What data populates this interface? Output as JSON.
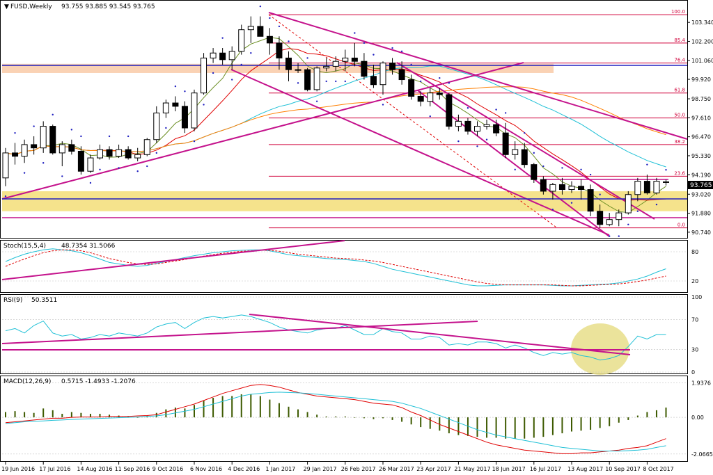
{
  "colors": {
    "bull": "#ffffff",
    "bear": "#000000",
    "magenta": "#c4128c",
    "red": "#e00000",
    "cyan": "#1fc0d6",
    "olive": "#6b8e23",
    "orange": "#ff7f00",
    "blue": "#2020c0",
    "fib": "#d0003a",
    "zone_yellow": "#f5e38c",
    "zone_orange": "#fad2b4",
    "macd_hist": "#3d5a00"
  },
  "main": {
    "title": "FUSD,Weekly",
    "ohlc": "93.755 93.885 93.545 93.765",
    "price_tag": "93.765"
  },
  "chart_data": [
    {
      "type": "candlestick",
      "title": "FUSD,Weekly",
      "ylim": [
        90.4,
        104.6
      ],
      "y_ticks": [
        "103.340",
        "102.200",
        "101.060",
        "99.920",
        "98.750",
        "97.610",
        "96.470",
        "95.330",
        "94.190",
        "93.020",
        "91.880",
        "90.740"
      ],
      "y_tick_values": [
        103.34,
        102.2,
        101.06,
        99.92,
        98.75,
        97.61,
        96.47,
        95.33,
        94.19,
        93.02,
        91.88,
        90.74
      ],
      "x_labels": [
        "19 Jun 2016",
        "17 Jul 2016",
        "14 Aug 2016",
        "11 Sep 2016",
        "9 Oct 2016",
        "6 Nov 2016",
        "4 Dec 2016",
        "1 Jan 2017",
        "29 Jan 2017",
        "26 Feb 2017",
        "26 Mar 2017",
        "23 Apr 2017",
        "21 May 2017",
        "18 Jun 2017",
        "16 Jul 2017",
        "13 Aug 2017",
        "10 Sep 2017",
        "8 Oct 2017"
      ],
      "x_label_bars": [
        0,
        4,
        8,
        12,
        16,
        20,
        24,
        28,
        32,
        36,
        40,
        44,
        48,
        52,
        56,
        60,
        64,
        68
      ],
      "candles": [
        [
          94.0,
          95.8,
          93.5,
          95.5
        ],
        [
          95.5,
          96.1,
          94.8,
          95.3
        ],
        [
          95.3,
          96.3,
          94.9,
          96.0
        ],
        [
          96.0,
          96.5,
          95.4,
          95.8
        ],
        [
          95.8,
          97.4,
          95.5,
          97.1
        ],
        [
          97.1,
          97.2,
          95.4,
          95.5
        ],
        [
          95.5,
          96.2,
          94.7,
          96.0
        ],
        [
          96.0,
          96.3,
          95.4,
          95.6
        ],
        [
          95.6,
          95.9,
          94.2,
          94.4
        ],
        [
          94.4,
          95.4,
          94.3,
          95.2
        ],
        [
          95.2,
          96.0,
          95.1,
          95.7
        ],
        [
          95.7,
          95.9,
          95.1,
          95.3
        ],
        [
          95.3,
          96.0,
          95.2,
          95.7
        ],
        [
          95.7,
          95.9,
          95.1,
          95.2
        ],
        [
          95.2,
          95.8,
          95.0,
          95.4
        ],
        [
          95.4,
          96.4,
          95.3,
          96.3
        ],
        [
          96.3,
          98.3,
          96.1,
          97.9
        ],
        [
          97.9,
          98.7,
          97.6,
          98.5
        ],
        [
          98.5,
          98.9,
          98.0,
          98.3
        ],
        [
          98.3,
          98.6,
          96.7,
          97.0
        ],
        [
          97.0,
          99.3,
          96.8,
          99.1
        ],
        [
          99.1,
          101.5,
          99.0,
          101.2
        ],
        [
          101.2,
          101.8,
          100.9,
          101.5
        ],
        [
          101.5,
          101.8,
          100.8,
          101.1
        ],
        [
          101.1,
          101.9,
          100.5,
          101.6
        ],
        [
          101.6,
          103.2,
          101.4,
          102.9
        ],
        [
          102.9,
          103.7,
          102.1,
          103.1
        ],
        [
          103.1,
          103.7,
          102.5,
          102.5
        ],
        [
          102.5,
          103.0,
          101.4,
          102.1
        ],
        [
          102.1,
          102.5,
          100.5,
          101.2
        ],
        [
          101.2,
          101.6,
          99.8,
          100.5
        ],
        [
          100.5,
          100.9,
          100.3,
          100.5
        ],
        [
          100.5,
          100.6,
          99.2,
          99.3
        ],
        [
          99.3,
          100.7,
          99.2,
          100.6
        ],
        [
          100.6,
          101.2,
          100.4,
          100.7
        ],
        [
          100.7,
          101.3,
          100.4,
          101.0
        ],
        [
          101.0,
          101.7,
          100.4,
          101.2
        ],
        [
          101.2,
          102.1,
          100.7,
          101.0
        ],
        [
          101.0,
          101.5,
          99.9,
          100.1
        ],
        [
          100.1,
          100.8,
          99.4,
          99.6
        ],
        [
          99.6,
          101.0,
          99.0,
          100.9
        ],
        [
          100.9,
          101.2,
          100.2,
          100.5
        ],
        [
          100.5,
          101.0,
          99.6,
          99.9
        ],
        [
          99.9,
          100.2,
          98.7,
          98.9
        ],
        [
          98.9,
          99.2,
          98.3,
          98.6
        ],
        [
          98.6,
          99.4,
          98.3,
          99.1
        ],
        [
          99.1,
          99.4,
          98.7,
          99.0
        ],
        [
          99.0,
          99.1,
          96.9,
          97.1
        ],
        [
          97.1,
          97.8,
          96.8,
          97.4
        ],
        [
          97.4,
          97.6,
          96.6,
          96.8
        ],
        [
          96.8,
          97.4,
          96.5,
          97.1
        ],
        [
          97.1,
          97.5,
          96.9,
          97.2
        ],
        [
          97.2,
          97.5,
          96.5,
          96.7
        ],
        [
          96.7,
          97.3,
          95.2,
          95.4
        ],
        [
          95.4,
          96.2,
          95.1,
          95.7
        ],
        [
          95.7,
          96.1,
          94.6,
          94.8
        ],
        [
          94.8,
          94.9,
          93.7,
          93.9
        ],
        [
          93.9,
          94.1,
          93.0,
          93.2
        ],
        [
          93.2,
          93.7,
          92.7,
          93.6
        ],
        [
          93.6,
          94.0,
          93.0,
          93.3
        ],
        [
          93.3,
          93.8,
          93.1,
          93.5
        ],
        [
          93.5,
          93.9,
          92.7,
          93.3
        ],
        [
          93.3,
          93.6,
          91.7,
          92.0
        ],
        [
          92.0,
          92.4,
          91.0,
          91.2
        ],
        [
          91.2,
          91.9,
          91.1,
          91.5
        ],
        [
          91.5,
          92.1,
          91.1,
          91.9
        ],
        [
          91.9,
          93.2,
          91.8,
          93.0
        ],
        [
          93.0,
          94.0,
          92.6,
          93.8
        ],
        [
          93.8,
          94.2,
          93.0,
          93.1
        ],
        [
          93.1,
          94.0,
          93.0,
          93.8
        ],
        [
          93.755,
          93.885,
          93.545,
          93.765
        ]
      ],
      "fib_levels": [
        {
          "label": "100.0",
          "value": 103.8
        },
        {
          "label": "85.4",
          "value": 102.1
        },
        {
          "label": "76.4",
          "value": 100.9
        },
        {
          "label": "61.8",
          "value": 99.1
        },
        {
          "label": "50.0",
          "value": 97.6
        },
        {
          "label": "38.2",
          "value": 96.0
        },
        {
          "label": "23.6",
          "value": 94.1
        },
        {
          "label": "0.0",
          "value": 91.0
        }
      ],
      "annotation_zones": [
        {
          "from": 92.0,
          "to": 93.2,
          "color": "zone_yellow"
        },
        {
          "from": 100.3,
          "to": 100.85,
          "color": "zone_orange"
        }
      ]
    },
    {
      "type": "line",
      "title": "Stoch(15,5,4)",
      "values_text": "48.7354 31.5066",
      "ylim": [
        0,
        100
      ],
      "y_ticks": [
        "80",
        "20"
      ],
      "y_tick_values": [
        80,
        20
      ],
      "series": [
        {
          "color": "cyan",
          "values": [
            60,
            68,
            75,
            80,
            84,
            86,
            84,
            82,
            78,
            72,
            65,
            58,
            55,
            52,
            50,
            52,
            56,
            60,
            64,
            68,
            72,
            75,
            78,
            80,
            82,
            83,
            84,
            84,
            82,
            78,
            74,
            72,
            70,
            68,
            66,
            65,
            64,
            62,
            60,
            56,
            50,
            44,
            40,
            36,
            32,
            28,
            24,
            20,
            16,
            12,
            10,
            10,
            11,
            12,
            12,
            12,
            12,
            12,
            11,
            10,
            10,
            11,
            12,
            13,
            14,
            16,
            20,
            24,
            30,
            38,
            45
          ]
        },
        {
          "color": "red",
          "values": [
            50,
            58,
            65,
            72,
            78,
            82,
            84,
            84,
            82,
            78,
            72,
            66,
            62,
            58,
            55,
            54,
            55,
            58,
            61,
            64,
            68,
            71,
            74,
            77,
            79,
            81,
            82,
            83,
            83,
            81,
            78,
            75,
            73,
            71,
            69,
            67,
            66,
            65,
            63,
            61,
            58,
            54,
            50,
            46,
            42,
            38,
            34,
            30,
            26,
            22,
            18,
            15,
            13,
            12,
            12,
            12,
            12,
            12,
            12,
            11,
            10,
            10,
            11,
            12,
            13,
            14,
            16,
            19,
            22,
            26,
            30
          ]
        }
      ]
    },
    {
      "type": "line",
      "title": "RSI(9)",
      "values_text": "50.3511",
      "ylim": [
        0,
        100
      ],
      "y_ticks": [
        "100",
        "70",
        "30",
        "0"
      ],
      "y_tick_values": [
        100,
        70,
        30,
        0
      ],
      "series": [
        {
          "color": "cyan",
          "values": [
            55,
            58,
            52,
            62,
            68,
            52,
            48,
            50,
            44,
            46,
            50,
            48,
            52,
            50,
            48,
            52,
            60,
            64,
            66,
            58,
            66,
            72,
            74,
            72,
            74,
            76,
            74,
            70,
            66,
            60,
            56,
            54,
            52,
            56,
            58,
            58,
            62,
            56,
            50,
            50,
            58,
            54,
            52,
            44,
            44,
            48,
            46,
            36,
            38,
            36,
            40,
            40,
            38,
            32,
            36,
            32,
            26,
            22,
            26,
            24,
            26,
            22,
            20,
            16,
            18,
            22,
            34,
            48,
            44,
            50,
            50
          ]
        }
      ]
    },
    {
      "type": "bar",
      "title": "MACD(12,26,9)",
      "values_text": "0.5715 -1.4933 -1.2076",
      "ylim": [
        -2.35,
        2.2
      ],
      "y_ticks": [
        "1.9376",
        "0.00",
        "-2.0665"
      ],
      "y_tick_values": [
        1.9376,
        0,
        -2.0665
      ],
      "values": [
        0.3,
        0.35,
        0.3,
        0.25,
        0.5,
        0.4,
        0.2,
        0.3,
        0.25,
        0.2,
        0.2,
        0.15,
        0.1,
        0.05,
        0,
        0.05,
        0.25,
        0.45,
        0.55,
        0.5,
        0.7,
        0.95,
        1.1,
        1.2,
        1.2,
        1.3,
        1.3,
        1.2,
        1.0,
        0.8,
        0.6,
        0.45,
        0.3,
        0.15,
        0.05,
        0.05,
        0.05,
        0,
        -0.05,
        -0.1,
        -0.05,
        -0.15,
        -0.25,
        -0.4,
        -0.55,
        -0.65,
        -0.75,
        -0.9,
        -1.0,
        -1.05,
        -1.1,
        -1.15,
        -1.15,
        -1.2,
        -1.2,
        -1.2,
        -1.15,
        -1.1,
        -1.0,
        -0.9,
        -0.8,
        -0.75,
        -0.7,
        -0.6,
        -0.5,
        -0.3,
        -0.15,
        0.1,
        0.3,
        0.4,
        0.55
      ],
      "series": [
        {
          "color": "red",
          "values": [
            -0.3,
            -0.25,
            -0.2,
            -0.15,
            -0.1,
            -0.05,
            -0.05,
            0,
            0.02,
            0.02,
            0.02,
            0.05,
            0.05,
            0.05,
            0.08,
            0.1,
            0.15,
            0.3,
            0.45,
            0.6,
            0.75,
            0.95,
            1.15,
            1.35,
            1.5,
            1.65,
            1.8,
            1.85,
            1.8,
            1.7,
            1.55,
            1.4,
            1.3,
            1.2,
            1.15,
            1.1,
            1.05,
            1.0,
            0.9,
            0.8,
            0.75,
            0.7,
            0.55,
            0.3,
            0.1,
            -0.15,
            -0.4,
            -0.6,
            -0.8,
            -1.0,
            -1.2,
            -1.4,
            -1.55,
            -1.65,
            -1.75,
            -1.85,
            -1.9,
            -1.95,
            -2.0,
            -2.05,
            -2.05,
            -2.0,
            -2.0,
            -1.95,
            -1.9,
            -1.85,
            -1.75,
            -1.7,
            -1.6,
            -1.4,
            -1.2
          ]
        },
        {
          "color": "cyan",
          "values": [
            -0.35,
            -0.3,
            -0.25,
            -0.22,
            -0.2,
            -0.17,
            -0.15,
            -0.12,
            -0.1,
            -0.08,
            -0.06,
            -0.04,
            -0.02,
            0,
            0.02,
            0.05,
            0.08,
            0.15,
            0.25,
            0.35,
            0.45,
            0.6,
            0.75,
            0.9,
            1.05,
            1.2,
            1.3,
            1.35,
            1.4,
            1.42,
            1.4,
            1.38,
            1.35,
            1.3,
            1.25,
            1.2,
            1.15,
            1.1,
            1.05,
            1.0,
            0.95,
            0.9,
            0.8,
            0.65,
            0.5,
            0.3,
            0.1,
            -0.1,
            -0.3,
            -0.5,
            -0.7,
            -0.85,
            -1.0,
            -1.1,
            -1.2,
            -1.3,
            -1.4,
            -1.5,
            -1.6,
            -1.7,
            -1.75,
            -1.8,
            -1.85,
            -1.9,
            -1.9,
            -1.9,
            -1.88,
            -1.85,
            -1.8,
            -1.7,
            -1.6
          ]
        }
      ]
    }
  ]
}
